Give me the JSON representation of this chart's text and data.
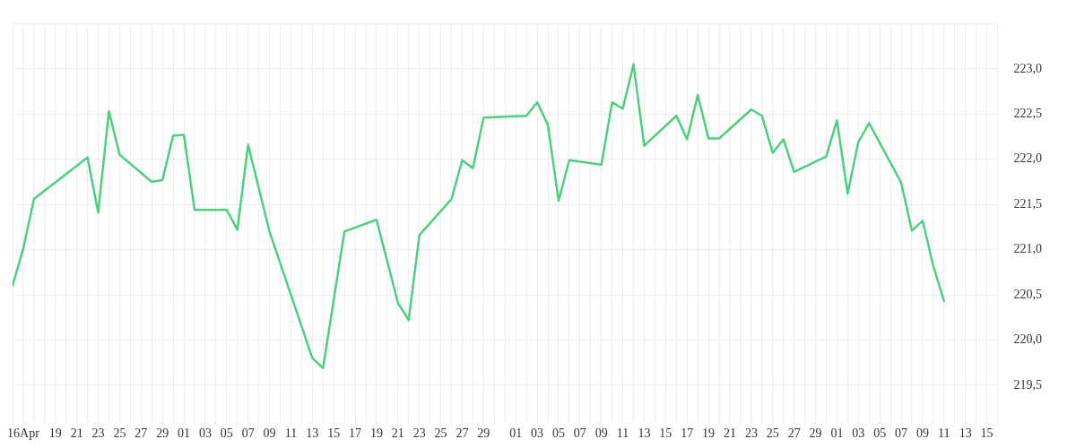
{
  "chart_data": {
    "type": "line",
    "x": [
      "--04-15",
      "--04-16",
      "--04-17",
      "--04-22",
      "--04-23",
      "--04-24",
      "--04-25",
      "--04-28",
      "--04-29",
      "--04-30",
      "--05-01",
      "--05-02",
      "--05-05",
      "--05-06",
      "--05-07",
      "--05-09",
      "--05-13",
      "--05-14",
      "--05-16",
      "--05-19",
      "--05-21",
      "--05-22",
      "--05-23",
      "--05-26",
      "--05-27",
      "--05-28",
      "--05-29",
      "--06-02",
      "--06-03",
      "--06-04",
      "--06-05",
      "--06-06",
      "--06-09",
      "--06-10",
      "--06-11",
      "--06-12",
      "--06-13",
      "--06-16",
      "--06-17",
      "--06-18",
      "--06-19",
      "--06-20",
      "--06-23",
      "--06-24",
      "--06-25",
      "--06-26",
      "--06-27",
      "--06-30",
      "--07-01",
      "--07-02",
      "--07-03",
      "--07-04",
      "--07-07",
      "--07-08",
      "--07-09",
      "--07-10",
      "--07-11"
    ],
    "series": [
      {
        "color": "#4cd07d",
        "values": [
          220.6,
          221.01,
          221.56,
          222.02,
          221.41,
          222.53,
          222.05,
          221.75,
          221.77,
          222.26,
          222.27,
          221.44,
          221.44,
          221.22,
          222.16,
          221.2,
          219.8,
          219.69,
          221.2,
          221.33,
          220.41,
          220.22,
          221.16,
          221.56,
          221.99,
          221.9,
          222.46,
          222.48,
          222.63,
          222.38,
          221.54,
          221.99,
          221.94,
          222.63,
          222.56,
          223.05,
          222.15,
          222.48,
          222.22,
          222.71,
          222.23,
          222.23,
          222.55,
          222.48,
          222.07,
          222.22,
          221.86,
          222.03,
          222.43,
          221.62,
          222.19,
          222.4,
          221.74,
          221.21,
          221.32,
          220.82,
          220.43
        ]
      }
    ],
    "xlim": [
      "--04-15",
      "--07-16"
    ],
    "xticks": [
      {
        "value": "--04-15",
        "label": null
      },
      {
        "value": "--04-16",
        "label": "16Apr"
      },
      {
        "value": "--04-17",
        "label": null
      },
      {
        "value": "--04-18",
        "label": null
      },
      {
        "value": "--04-19",
        "label": "19"
      },
      {
        "value": "--04-20",
        "label": null
      },
      {
        "value": "--04-21",
        "label": "21"
      },
      {
        "value": "--04-22",
        "label": null
      },
      {
        "value": "--04-23",
        "label": "23"
      },
      {
        "value": "--04-24",
        "label": null
      },
      {
        "value": "--04-25",
        "label": "25"
      },
      {
        "value": "--04-26",
        "label": null
      },
      {
        "value": "--04-27",
        "label": "27"
      },
      {
        "value": "--04-28",
        "label": null
      },
      {
        "value": "--04-29",
        "label": "29"
      },
      {
        "value": "--04-30",
        "label": null
      },
      {
        "value": "--05-01",
        "label": "01"
      },
      {
        "value": "--05-02",
        "label": null
      },
      {
        "value": "--05-03",
        "label": "03"
      },
      {
        "value": "--05-04",
        "label": null
      },
      {
        "value": "--05-05",
        "label": "05"
      },
      {
        "value": "--05-06",
        "label": null
      },
      {
        "value": "--05-07",
        "label": "07"
      },
      {
        "value": "--05-08",
        "label": null
      },
      {
        "value": "--05-09",
        "label": "09"
      },
      {
        "value": "--05-10",
        "label": null
      },
      {
        "value": "--05-11",
        "label": "11"
      },
      {
        "value": "--05-12",
        "label": null
      },
      {
        "value": "--05-13",
        "label": "13"
      },
      {
        "value": "--05-14",
        "label": null
      },
      {
        "value": "--05-15",
        "label": "15"
      },
      {
        "value": "--05-16",
        "label": null
      },
      {
        "value": "--05-17",
        "label": "17"
      },
      {
        "value": "--05-18",
        "label": null
      },
      {
        "value": "--05-19",
        "label": "19"
      },
      {
        "value": "--05-20",
        "label": null
      },
      {
        "value": "--05-21",
        "label": "21"
      },
      {
        "value": "--05-22",
        "label": null
      },
      {
        "value": "--05-23",
        "label": "23"
      },
      {
        "value": "--05-24",
        "label": null
      },
      {
        "value": "--05-25",
        "label": "25"
      },
      {
        "value": "--05-26",
        "label": null
      },
      {
        "value": "--05-27",
        "label": "27"
      },
      {
        "value": "--05-28",
        "label": null
      },
      {
        "value": "--05-29",
        "label": "29"
      },
      {
        "value": "--05-30",
        "label": null
      },
      {
        "value": "--05-31",
        "label": null
      },
      {
        "value": "--06-01",
        "label": "01"
      },
      {
        "value": "--06-02",
        "label": null
      },
      {
        "value": "--06-03",
        "label": "03"
      },
      {
        "value": "--06-04",
        "label": null
      },
      {
        "value": "--06-05",
        "label": "05"
      },
      {
        "value": "--06-06",
        "label": null
      },
      {
        "value": "--06-07",
        "label": "07"
      },
      {
        "value": "--06-08",
        "label": null
      },
      {
        "value": "--06-09",
        "label": "09"
      },
      {
        "value": "--06-10",
        "label": null
      },
      {
        "value": "--06-11",
        "label": "11"
      },
      {
        "value": "--06-12",
        "label": null
      },
      {
        "value": "--06-13",
        "label": "13"
      },
      {
        "value": "--06-14",
        "label": null
      },
      {
        "value": "--06-15",
        "label": "15"
      },
      {
        "value": "--06-16",
        "label": null
      },
      {
        "value": "--06-17",
        "label": "17"
      },
      {
        "value": "--06-18",
        "label": null
      },
      {
        "value": "--06-19",
        "label": "19"
      },
      {
        "value": "--06-20",
        "label": null
      },
      {
        "value": "--06-21",
        "label": "21"
      },
      {
        "value": "--06-22",
        "label": null
      },
      {
        "value": "--06-23",
        "label": "23"
      },
      {
        "value": "--06-24",
        "label": null
      },
      {
        "value": "--06-25",
        "label": "25"
      },
      {
        "value": "--06-26",
        "label": null
      },
      {
        "value": "--06-27",
        "label": "27"
      },
      {
        "value": "--06-28",
        "label": null
      },
      {
        "value": "--06-29",
        "label": "29"
      },
      {
        "value": "--06-30",
        "label": null
      },
      {
        "value": "--07-01",
        "label": "01"
      },
      {
        "value": "--07-02",
        "label": null
      },
      {
        "value": "--07-03",
        "label": "03"
      },
      {
        "value": "--07-04",
        "label": null
      },
      {
        "value": "--07-05",
        "label": "05"
      },
      {
        "value": "--07-06",
        "label": null
      },
      {
        "value": "--07-07",
        "label": "07"
      },
      {
        "value": "--07-08",
        "label": null
      },
      {
        "value": "--07-09",
        "label": "09"
      },
      {
        "value": "--07-10",
        "label": null
      },
      {
        "value": "--07-11",
        "label": "11"
      },
      {
        "value": "--07-12",
        "label": null
      },
      {
        "value": "--07-13",
        "label": "13"
      },
      {
        "value": "--07-14",
        "label": null
      },
      {
        "value": "--07-15",
        "label": "15"
      },
      {
        "value": "--07-16",
        "label": null
      }
    ],
    "ylim": [
      219.13,
      223.5
    ],
    "yticks": [
      {
        "value": 219.5,
        "label": "219,5"
      },
      {
        "value": 220,
        "label": "220,0"
      },
      {
        "value": 220.5,
        "label": "220,5"
      },
      {
        "value": 221,
        "label": "221,0"
      },
      {
        "value": 221.5,
        "label": "221,5"
      },
      {
        "value": 222,
        "label": "222,0"
      },
      {
        "value": 222.5,
        "label": "222,5"
      },
      {
        "value": 223,
        "label": "223,0"
      },
      {
        "value": 223.5,
        "label": null
      }
    ],
    "grid": true,
    "legend": false,
    "marker": "none",
    "line_style": "solid"
  }
}
